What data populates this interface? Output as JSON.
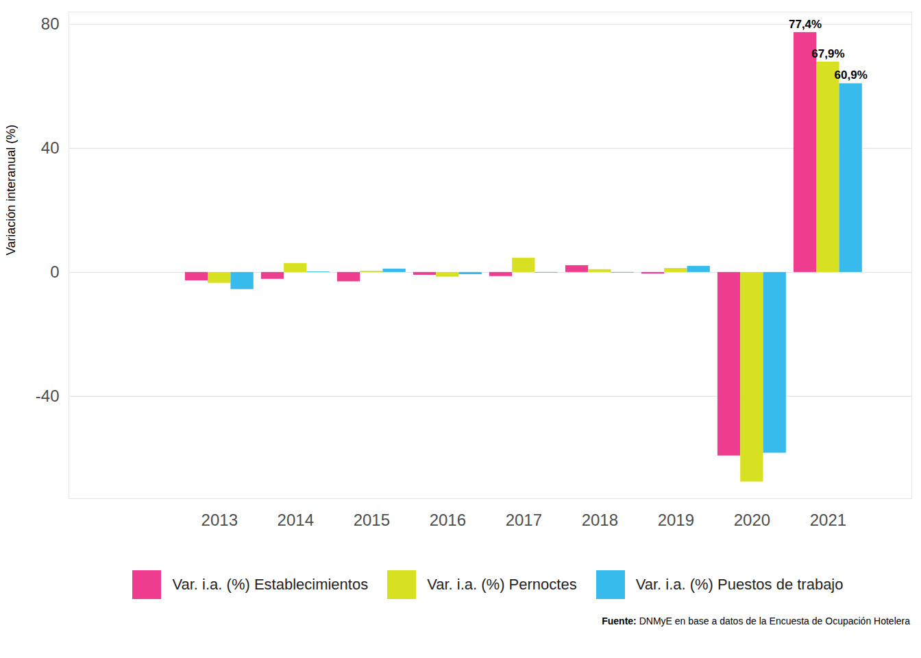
{
  "chart_data": {
    "type": "bar",
    "y_label": "Variación interanual (%)",
    "categories": [
      "2013",
      "2014",
      "2015",
      "2016",
      "2017",
      "2018",
      "2019",
      "2020",
      "2021"
    ],
    "series": [
      {
        "name": "Var. i.a. (%) Establecimientos",
        "color": "#EE3D8F",
        "values": [
          -2.7,
          -2.2,
          -3.0,
          -0.9,
          -1.3,
          2.2,
          -0.5,
          -59.2,
          77.4
        ],
        "value_labels": [
          null,
          null,
          null,
          null,
          null,
          null,
          null,
          null,
          "77,4%"
        ]
      },
      {
        "name": "Var. i.a. (%) Pernoctes",
        "color": "#D7E021",
        "values": [
          -3.5,
          2.9,
          0.4,
          -1.5,
          4.6,
          0.9,
          1.3,
          -67.6,
          67.9
        ],
        "value_labels": [
          null,
          null,
          null,
          null,
          null,
          null,
          null,
          null,
          "67,9%"
        ]
      },
      {
        "name": "Var. i.a. (%) Puestos de trabajo",
        "color": "#37BBED",
        "values": [
          -5.5,
          0.2,
          1.1,
          -0.7,
          -0.2,
          -0.2,
          2.0,
          -58.3,
          60.9
        ],
        "value_labels": [
          null,
          null,
          null,
          null,
          null,
          null,
          null,
          null,
          "60,9%"
        ]
      }
    ],
    "ylim": [
      -73,
      84
    ],
    "yticks": [
      -40,
      0,
      40,
      80
    ],
    "grid": true,
    "data_labels": true,
    "legend": "bottom",
    "caption": {
      "label": "Fuente:",
      "text": "DNMyE en base a datos de la Encuesta de Ocupación Hotelera"
    }
  }
}
